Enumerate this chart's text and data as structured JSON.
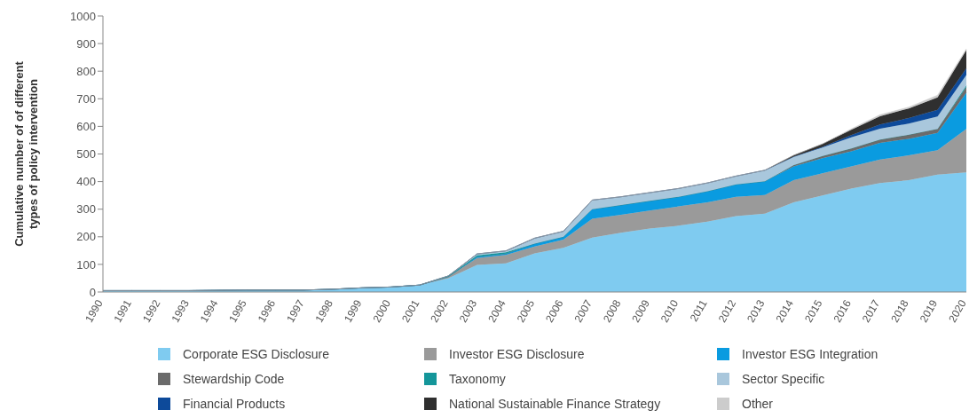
{
  "chart_data": {
    "type": "area",
    "stacked": true,
    "ylabel": "Cumulative number of of different types of policy intervention",
    "categories": [
      "1990",
      "1991",
      "1992",
      "1993",
      "1994",
      "1995",
      "1996",
      "1997",
      "1998",
      "1999",
      "2000",
      "2001",
      "2002",
      "2003",
      "2004",
      "2005",
      "2006",
      "2007",
      "2008",
      "2009",
      "2010",
      "2011",
      "2012",
      "2013",
      "2014",
      "2015",
      "2016",
      "2017",
      "2018",
      "2019",
      "2020"
    ],
    "series": [
      {
        "name": "Corporate ESG Disclosure",
        "color": "#7fcbf0",
        "values": [
          5,
          5,
          5,
          5,
          6,
          7,
          7,
          7,
          10,
          15,
          18,
          25,
          50,
          98,
          104,
          140,
          160,
          197,
          215,
          230,
          240,
          255,
          275,
          284,
          325,
          350,
          375,
          395,
          405,
          425,
          433
        ]
      },
      {
        "name": "Investor ESG Disclosure",
        "color": "#9a9a9a",
        "values": [
          0,
          0,
          0,
          0,
          0,
          0,
          0,
          0,
          0,
          0,
          0,
          0,
          5,
          25,
          30,
          25,
          30,
          68,
          65,
          65,
          70,
          70,
          70,
          67,
          80,
          80,
          80,
          85,
          90,
          89,
          158
        ]
      },
      {
        "name": "Investor ESG Integration",
        "color": "#0a9be0",
        "values": [
          0,
          0,
          0,
          0,
          0,
          0,
          0,
          0,
          0,
          0,
          0,
          0,
          0,
          5,
          5,
          10,
          10,
          35,
          35,
          35,
          35,
          40,
          45,
          50,
          50,
          55,
          55,
          60,
          60,
          62,
          131
        ]
      },
      {
        "name": "Stewardship Code",
        "color": "#6b6b6b",
        "values": [
          0,
          0,
          0,
          0,
          0,
          0,
          0,
          0,
          0,
          0,
          0,
          0,
          0,
          0,
          0,
          0,
          0,
          0,
          0,
          0,
          0,
          0,
          0,
          0,
          5,
          8,
          10,
          12,
          15,
          15,
          21
        ]
      },
      {
        "name": "Taxonomy",
        "color": "#14969a",
        "values": [
          0,
          0,
          0,
          0,
          0,
          0,
          0,
          0,
          0,
          0,
          0,
          0,
          3,
          5,
          5,
          0,
          0,
          0,
          0,
          0,
          0,
          0,
          0,
          0,
          0,
          0,
          0,
          0,
          0,
          0,
          5
        ]
      },
      {
        "name": "Sector Specific",
        "color": "#a9c7dc",
        "values": [
          0,
          0,
          0,
          0,
          0,
          0,
          0,
          0,
          0,
          0,
          0,
          0,
          0,
          5,
          5,
          20,
          20,
          33,
          30,
          30,
          30,
          30,
          30,
          40,
          30,
          30,
          40,
          40,
          40,
          45,
          38
        ]
      },
      {
        "name": "Financial Products",
        "color": "#0d4a9a",
        "values": [
          0,
          0,
          0,
          0,
          0,
          0,
          0,
          0,
          0,
          0,
          0,
          0,
          0,
          0,
          0,
          0,
          0,
          0,
          0,
          0,
          0,
          0,
          0,
          0,
          0,
          3,
          8,
          15,
          20,
          24,
          24
        ]
      },
      {
        "name": "National Sustainable Finance Strategy",
        "color": "#2f2f2f",
        "values": [
          0,
          0,
          0,
          0,
          0,
          0,
          0,
          0,
          0,
          0,
          0,
          0,
          0,
          0,
          0,
          0,
          0,
          0,
          0,
          0,
          0,
          0,
          0,
          0,
          5,
          10,
          20,
          30,
          35,
          45,
          66
        ]
      },
      {
        "name": "Other",
        "color": "#cccccc",
        "values": [
          0,
          0,
          0,
          0,
          0,
          0,
          0,
          0,
          0,
          0,
          0,
          0,
          0,
          0,
          0,
          0,
          0,
          0,
          0,
          0,
          0,
          0,
          0,
          0,
          0,
          0,
          3,
          5,
          5,
          8,
          5
        ]
      }
    ],
    "ylim": [
      0,
      1000
    ],
    "yticks": [
      0,
      100,
      200,
      300,
      400,
      500,
      600,
      700,
      800,
      900,
      1000
    ],
    "grid": false,
    "legend": "bottom"
  }
}
